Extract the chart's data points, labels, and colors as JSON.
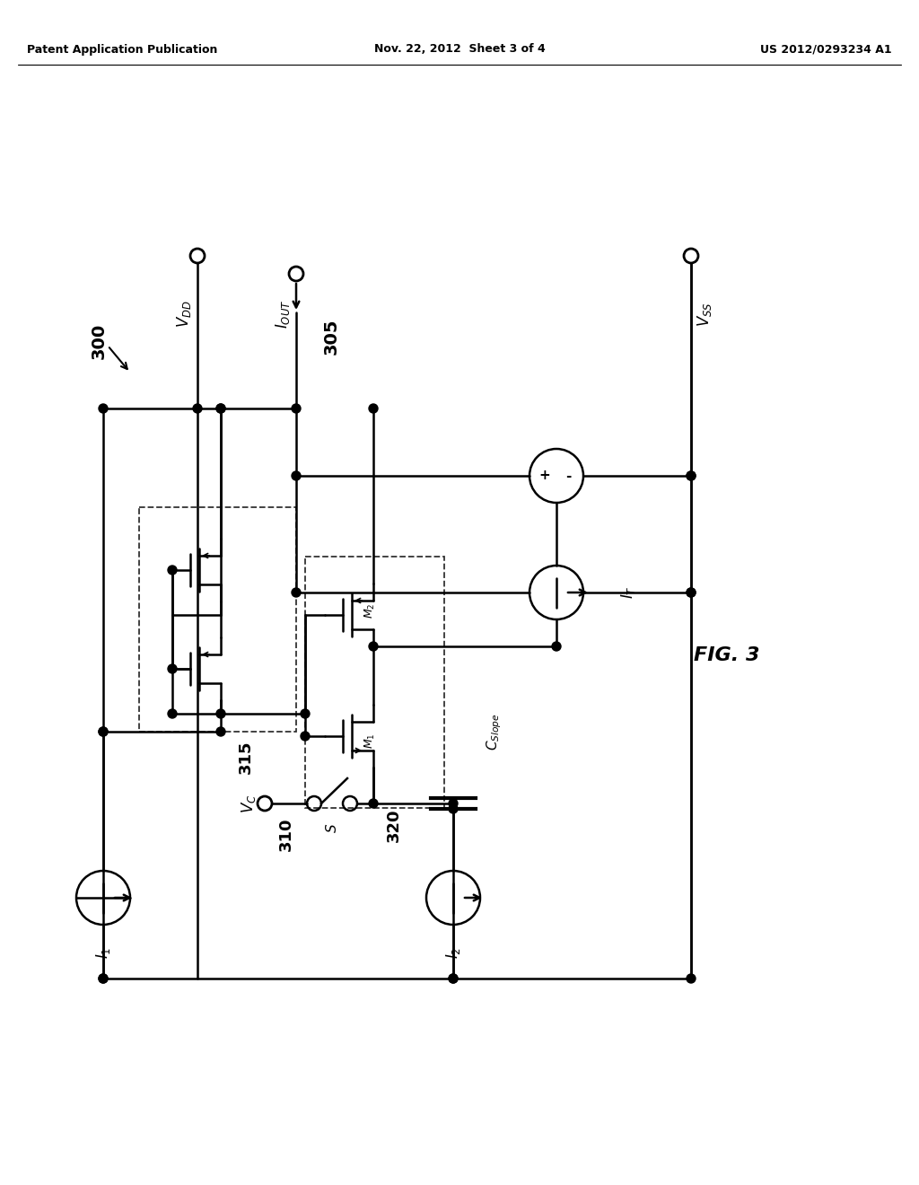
{
  "background_color": "#ffffff",
  "header_left": "Patent Application Publication",
  "header_center": "Nov. 22, 2012  Sheet 3 of 4",
  "header_right": "US 2012/0293234 A1",
  "fig_label": "FIG. 3",
  "line_color": "#000000",
  "line_width": 1.8
}
